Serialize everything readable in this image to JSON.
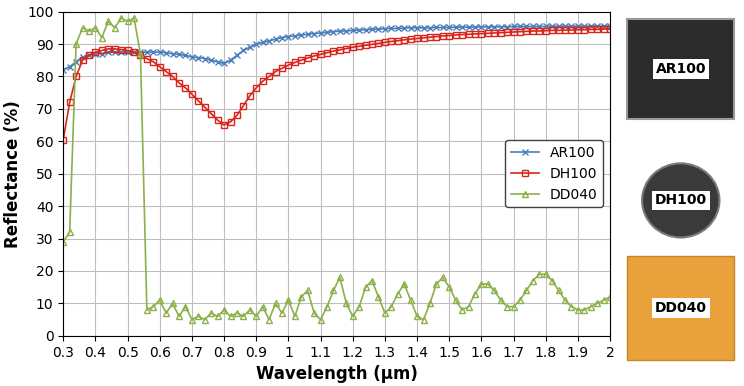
{
  "chart_data": {
    "type": "line",
    "x_label": "Wavelength (µm)",
    "y_label": "Reflectance (%)",
    "x": [
      0.3,
      0.32,
      0.34,
      0.36,
      0.38,
      0.4,
      0.42,
      0.44,
      0.46,
      0.48,
      0.5,
      0.52,
      0.54,
      0.56,
      0.58,
      0.6,
      0.62,
      0.64,
      0.66,
      0.68,
      0.7,
      0.72,
      0.74,
      0.76,
      0.78,
      0.8,
      0.82,
      0.84,
      0.86,
      0.88,
      0.9,
      0.92,
      0.94,
      0.96,
      0.98,
      1.0,
      1.02,
      1.04,
      1.06,
      1.08,
      1.1,
      1.12,
      1.14,
      1.16,
      1.18,
      1.2,
      1.22,
      1.24,
      1.26,
      1.28,
      1.3,
      1.32,
      1.34,
      1.36,
      1.38,
      1.4,
      1.42,
      1.44,
      1.46,
      1.48,
      1.5,
      1.52,
      1.54,
      1.56,
      1.58,
      1.6,
      1.62,
      1.64,
      1.66,
      1.68,
      1.7,
      1.72,
      1.74,
      1.76,
      1.78,
      1.8,
      1.82,
      1.84,
      1.86,
      1.88,
      1.9,
      1.92,
      1.94,
      1.96,
      1.98,
      2.0
    ],
    "series": [
      {
        "name": "AR100",
        "color": "#4a7ebb",
        "marker": "x",
        "line_style": "solid",
        "values": [
          82,
          83,
          84.5,
          86,
          86.5,
          87,
          87,
          87.5,
          87.5,
          87.5,
          87.5,
          87.5,
          87.5,
          87.5,
          87.5,
          87.5,
          87.3,
          87,
          86.8,
          86.5,
          86,
          85.8,
          85.5,
          85,
          84.5,
          84,
          85,
          86.5,
          88,
          89,
          90,
          90.5,
          91,
          91.5,
          92,
          92.3,
          92.5,
          92.8,
          93,
          93.2,
          93.4,
          93.6,
          93.8,
          94,
          94,
          94.2,
          94.3,
          94.4,
          94.5,
          94.6,
          94.7,
          94.8,
          94.8,
          94.9,
          95,
          95,
          95,
          95,
          95.1,
          95.1,
          95.1,
          95.2,
          95.2,
          95.2,
          95.2,
          95.3,
          95.3,
          95.3,
          95.3,
          95.3,
          95.4,
          95.4,
          95.4,
          95.4,
          95.4,
          95.4,
          95.5,
          95.5,
          95.5,
          95.5,
          95.5,
          95.5,
          95.5,
          95.5,
          95.5,
          95.5
        ]
      },
      {
        "name": "DH100",
        "color": "#d9241c",
        "marker": "square",
        "line_style": "solid",
        "values": [
          60.5,
          72,
          80,
          85,
          86.5,
          87.5,
          88,
          88.5,
          88.5,
          88.3,
          88,
          87.5,
          86.5,
          85.5,
          84.5,
          83,
          81.5,
          80,
          78,
          76.5,
          74.5,
          72.5,
          70.5,
          68.5,
          66.5,
          65,
          66,
          68,
          71,
          74,
          76.5,
          78.5,
          80,
          81.5,
          82.5,
          83.5,
          84.3,
          85,
          85.7,
          86.3,
          86.8,
          87.3,
          87.8,
          88.2,
          88.6,
          89,
          89.3,
          89.6,
          89.9,
          90.2,
          90.5,
          90.8,
          91,
          91.3,
          91.5,
          91.7,
          91.9,
          92.1,
          92.3,
          92.5,
          92.6,
          92.8,
          92.9,
          93,
          93.1,
          93.2,
          93.3,
          93.4,
          93.5,
          93.6,
          93.7,
          93.8,
          93.9,
          94,
          94,
          94.1,
          94.2,
          94.2,
          94.3,
          94.3,
          94.4,
          94.4,
          94.5,
          94.5,
          94.6,
          94.6
        ]
      },
      {
        "name": "DD040",
        "color": "#8cb04a",
        "marker": "triangle",
        "line_style": "solid",
        "values": [
          29,
          32,
          90,
          95,
          94,
          95,
          92,
          97,
          95,
          98,
          97,
          98,
          87,
          8,
          9,
          11,
          7,
          10,
          6,
          9,
          5,
          6,
          5,
          7,
          6,
          8,
          6,
          7,
          6,
          8,
          6,
          9,
          5,
          10,
          7,
          11,
          6,
          12,
          14,
          7,
          5,
          9,
          14,
          18,
          10,
          6,
          9,
          15,
          17,
          12,
          7,
          9,
          13,
          16,
          11,
          6,
          5,
          10,
          16,
          18,
          15,
          11,
          8,
          9,
          13,
          16,
          16,
          14,
          11,
          9,
          9,
          11,
          14,
          17,
          19,
          19,
          17,
          14,
          11,
          9,
          8,
          8,
          9,
          10,
          11,
          12
        ]
      }
    ],
    "xlim": [
      0.3,
      2
    ],
    "ylim": [
      0,
      100
    ],
    "xticks": [
      0.3,
      0.4,
      0.5,
      0.6,
      0.7,
      0.8,
      0.9,
      1,
      1.1,
      1.2,
      1.3,
      1.4,
      1.5,
      1.6,
      1.7,
      1.8,
      1.9,
      2
    ],
    "yticks": [
      0,
      10,
      20,
      30,
      40,
      50,
      60,
      70,
      80,
      90,
      100
    ],
    "grid": true,
    "legend": "center right"
  }
}
